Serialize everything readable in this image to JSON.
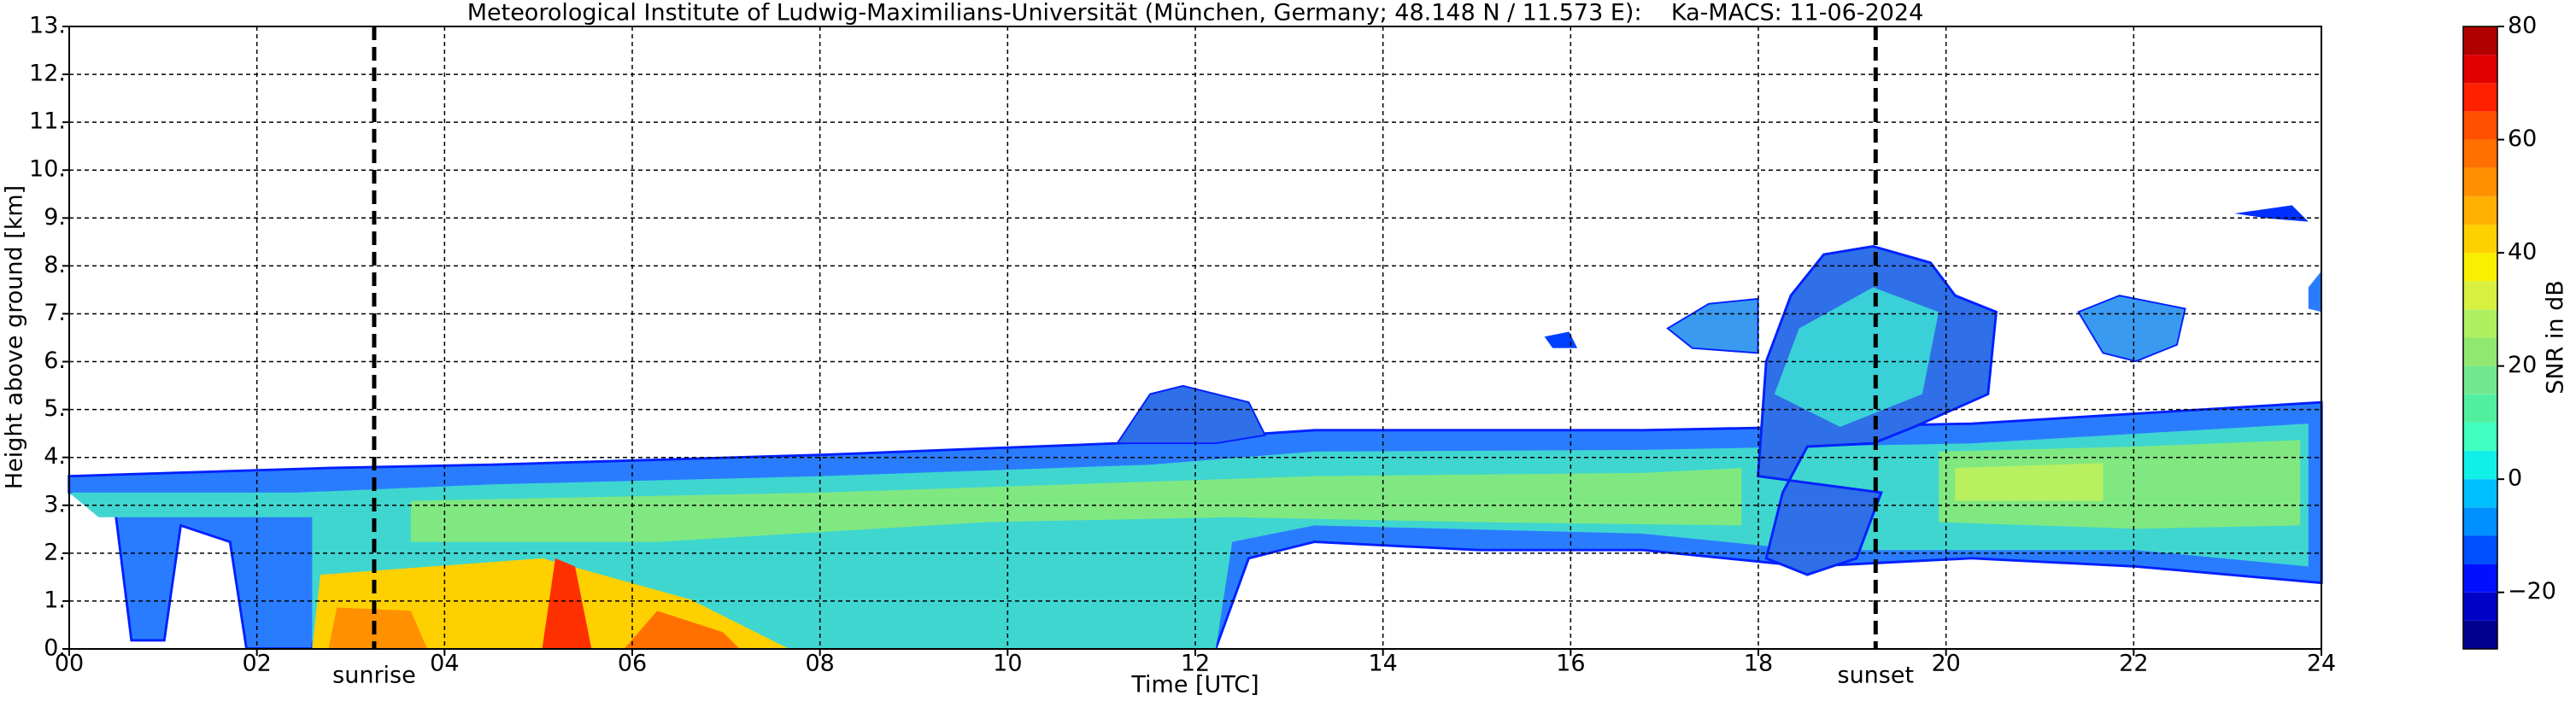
{
  "chart_data": {
    "type": "heatmap",
    "title": "Meteorological Institute of Ludwig-Maximilians-Universität (München, Germany; 48.148 N / 11.573 E):    Ka-MACS: 11-06-2024",
    "x_label": "Time [UTC]",
    "y_label": "Height above ground [km]",
    "xlim": [
      0,
      24
    ],
    "xticks": [
      {
        "value": 0,
        "label": "00"
      },
      {
        "value": 2,
        "label": "02"
      },
      {
        "value": 4,
        "label": "04"
      },
      {
        "value": 6,
        "label": "06"
      },
      {
        "value": 8,
        "label": "08"
      },
      {
        "value": 10,
        "label": "10"
      },
      {
        "value": 12,
        "label": "12"
      },
      {
        "value": 14,
        "label": "14"
      },
      {
        "value": 16,
        "label": "16"
      },
      {
        "value": 18,
        "label": "18"
      },
      {
        "value": 20,
        "label": "20"
      },
      {
        "value": 22,
        "label": "22"
      },
      {
        "value": 24,
        "label": "24"
      }
    ],
    "ylim": [
      0,
      13
    ],
    "yticks": [
      {
        "value": 0,
        "label": "0."
      },
      {
        "value": 1,
        "label": "1."
      },
      {
        "value": 2,
        "label": "2."
      },
      {
        "value": 3,
        "label": "3."
      },
      {
        "value": 4,
        "label": "4."
      },
      {
        "value": 5,
        "label": "5."
      },
      {
        "value": 6,
        "label": "6."
      },
      {
        "value": 7,
        "label": "7."
      },
      {
        "value": 8,
        "label": "8."
      },
      {
        "value": 9,
        "label": "9."
      },
      {
        "value": 10,
        "label": "10."
      },
      {
        "value": 11,
        "label": "11."
      },
      {
        "value": 12,
        "label": "12."
      },
      {
        "value": 13,
        "label": "13."
      }
    ],
    "grid": true,
    "annotations": [
      {
        "x": 3.25,
        "label": "sunrise"
      },
      {
        "x": 19.25,
        "label": "sunset"
      }
    ],
    "colorbar": {
      "label": "SNR in dB",
      "lim": [
        -30,
        80
      ],
      "ticks": [
        {
          "value": -20,
          "label": "−20"
        },
        0,
        20,
        40,
        60,
        80
      ],
      "levels": [
        -30,
        -25,
        -20,
        -15,
        -10,
        -5,
        0,
        5,
        10,
        15,
        20,
        25,
        30,
        35,
        40,
        45,
        50,
        55,
        60,
        65,
        70,
        75,
        80
      ],
      "colors": [
        "#00008f",
        "#0000c8",
        "#0010ff",
        "#0050ff",
        "#0090ff",
        "#00c0ff",
        "#10f0e8",
        "#40ffc0",
        "#50f0a0",
        "#70e890",
        "#90e870",
        "#b0f060",
        "#d8f040",
        "#f8f000",
        "#ffd000",
        "#ffb000",
        "#ff9000",
        "#ff7000",
        "#ff5000",
        "#ff2000",
        "#e00000",
        "#b00000"
      ]
    }
  }
}
